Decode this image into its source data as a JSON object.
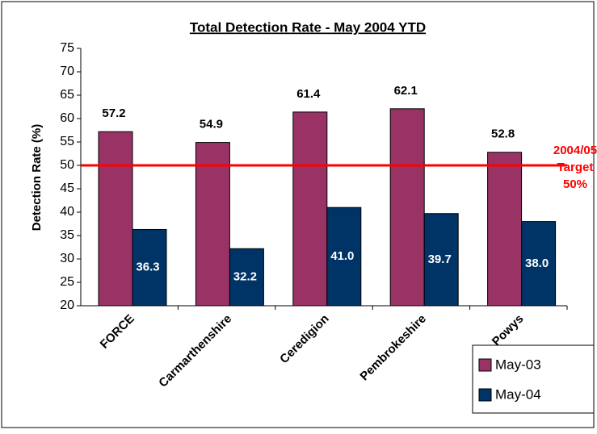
{
  "chart_data": {
    "type": "bar",
    "title": "Total Detection Rate - May 2004 YTD",
    "y_label": "Detection Rate (%)",
    "categories": [
      "FORCE",
      "Carmarthenshire",
      "Ceredigion",
      "Pembrokeshire",
      "Powys"
    ],
    "series": [
      {
        "name": "May-03",
        "color": "#993366",
        "values": [
          57.2,
          54.9,
          61.4,
          62.1,
          52.8
        ]
      },
      {
        "name": "May-04",
        "color": "#003366",
        "values": [
          36.3,
          32.2,
          41.0,
          39.7,
          38.0
        ],
        "value_labels": [
          "36.3",
          "32.2",
          "41.0",
          "39.7",
          "38.0"
        ]
      }
    ],
    "ylim": [
      20,
      75
    ],
    "yticks": [
      20,
      25,
      30,
      35,
      40,
      45,
      50,
      55,
      60,
      65,
      70,
      75
    ],
    "grid": false,
    "legend": "lower right",
    "target": {
      "value": 50,
      "color": "#ff0000",
      "label": [
        "2004/05",
        "Target",
        "50%"
      ]
    }
  }
}
